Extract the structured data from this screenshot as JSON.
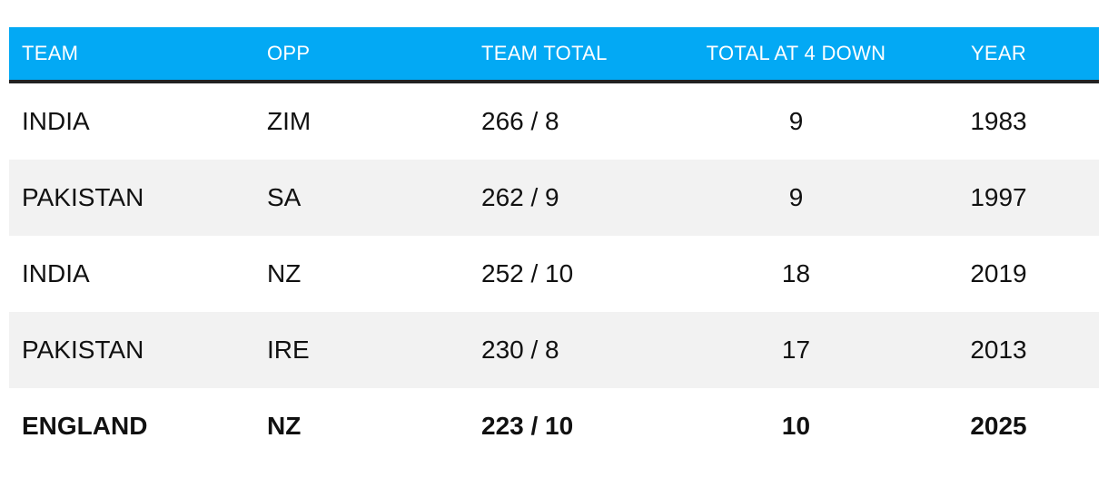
{
  "table": {
    "headers": [
      "TEAM",
      "OPP",
      "TEAM TOTAL",
      "TOTAL AT 4 DOWN",
      "YEAR"
    ],
    "rows": [
      {
        "team": "INDIA",
        "opp": "ZIM",
        "total": "266 / 8",
        "at4": "9",
        "year": "1983"
      },
      {
        "team": "PAKISTAN",
        "opp": "SA",
        "total": "262 / 9",
        "at4": "9",
        "year": "1997"
      },
      {
        "team": "INDIA",
        "opp": "NZ",
        "total": "252 / 10",
        "at4": "18",
        "year": "2019"
      },
      {
        "team": "PAKISTAN",
        "opp": "IRE",
        "total": "230 / 8",
        "at4": "17",
        "year": "2013"
      },
      {
        "team": "ENGLAND",
        "opp": "NZ",
        "total": "223 / 10",
        "at4": "10",
        "year": "2025"
      }
    ]
  },
  "colors": {
    "header_bg": "#03a9f4",
    "header_text": "#ffffff",
    "header_rule": "#222222",
    "row_shade": "#f2f2f2",
    "text": "#111111"
  }
}
